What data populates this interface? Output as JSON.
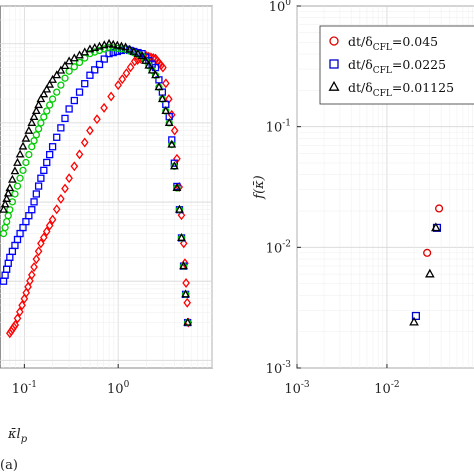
{
  "chart_data": [
    {
      "panel_label": "(a)",
      "type": "scatter",
      "xlabel": "κ̄l_p",
      "ylabel": "",
      "xscale": "log",
      "yscale": "log",
      "xlim": [
        0.055,
        10
      ],
      "ylim": [
        0.0008,
        30
      ],
      "x_tick_labels": [
        {
          "value": 0.1,
          "base": "10",
          "exp": "-1"
        },
        {
          "value": 1,
          "base": "10",
          "exp": "0"
        }
      ],
      "grid": true,
      "series": [
        {
          "color": "#ff0000",
          "marker": "diamond",
          "x": [
            0.07,
            0.08,
            0.1,
            0.12,
            0.15,
            0.2,
            0.3,
            0.5,
            1.0,
            1.5,
            2.0,
            2.5,
            3.0,
            4.0,
            5.0,
            5.6
          ],
          "y": [
            0.0022,
            0.0028,
            0.006,
            0.012,
            0.03,
            0.06,
            0.2,
            0.8,
            3.0,
            6.0,
            7.0,
            6.5,
            5.0,
            0.8,
            0.03,
            0.003
          ]
        },
        {
          "color": "#0000ff",
          "marker": "square",
          "x": [
            0.06,
            0.07,
            0.09,
            0.12,
            0.15,
            0.2,
            0.3,
            0.5,
            0.8,
            1.2,
            1.8,
            2.5,
            3.5,
            4.5,
            5.5
          ],
          "y": [
            0.01,
            0.02,
            0.04,
            0.08,
            0.2,
            0.5,
            1.5,
            4.0,
            7.5,
            8.5,
            7.5,
            5.0,
            1.2,
            0.08,
            0.003
          ]
        },
        {
          "color": "#00cc00",
          "marker": "circle",
          "x": [
            0.06,
            0.07,
            0.09,
            0.12,
            0.15,
            0.2,
            0.3,
            0.5,
            0.8,
            1.2,
            1.8,
            2.5,
            3.5,
            4.5,
            5.5
          ],
          "y": [
            0.04,
            0.08,
            0.2,
            0.5,
            1.0,
            2.0,
            4.5,
            7.5,
            9.0,
            8.5,
            7.0,
            4.0,
            1.0,
            0.08,
            0.003
          ]
        },
        {
          "color": "#000000",
          "marker": "triangle",
          "x": [
            0.06,
            0.07,
            0.09,
            0.12,
            0.15,
            0.2,
            0.3,
            0.5,
            0.8,
            1.2,
            1.8,
            2.5,
            3.5,
            4.5,
            5.5
          ],
          "y": [
            0.08,
            0.15,
            0.4,
            1.0,
            2.0,
            3.5,
            6.0,
            8.5,
            10.0,
            9.0,
            7.0,
            4.0,
            1.0,
            0.08,
            0.003
          ]
        }
      ]
    },
    {
      "panel_label": "",
      "type": "scatter",
      "xlabel": "",
      "ylabel": "f(κ̄)",
      "xscale": "log",
      "yscale": "log",
      "xlim": [
        0.001,
        0.12
      ],
      "ylim": [
        0.001,
        1
      ],
      "x_tick_labels": [
        {
          "value": 0.001,
          "base": "10",
          "exp": "-3"
        },
        {
          "value": 0.01,
          "base": "10",
          "exp": "-2"
        }
      ],
      "y_tick_labels": [
        {
          "value": 1,
          "base": "10",
          "exp": "0"
        },
        {
          "value": 0.1,
          "base": "10",
          "exp": "-1"
        },
        {
          "value": 0.01,
          "base": "10",
          "exp": "-2"
        },
        {
          "value": 0.001,
          "base": "10",
          "exp": "-3"
        }
      ],
      "grid": true,
      "legend_position": "top-right",
      "series": [
        {
          "name": "dt/δCFL=0.045",
          "legend_main": "dt/δ",
          "legend_sub": "CFL",
          "legend_value": "=0.045",
          "color": "#dd0000",
          "marker": "circle",
          "x": [
            0.028,
            0.038
          ],
          "y": [
            0.009,
            0.021
          ]
        },
        {
          "name": "dt/δCFL=0.0225",
          "legend_main": "dt/δ",
          "legend_sub": "CFL",
          "legend_value": "=0.0225",
          "color": "#0000cc",
          "marker": "square",
          "x": [
            0.021,
            0.036
          ],
          "y": [
            0.0027,
            0.0145
          ]
        },
        {
          "name": "dt/δCFL=0.01125",
          "legend_main": "dt/δ",
          "legend_sub": "CFL",
          "legend_value": "=0.01125",
          "color": "#000000",
          "marker": "triangle",
          "x": [
            0.02,
            0.035,
            0.03
          ],
          "y": [
            0.0024,
            0.0145,
            0.006
          ]
        }
      ]
    }
  ]
}
